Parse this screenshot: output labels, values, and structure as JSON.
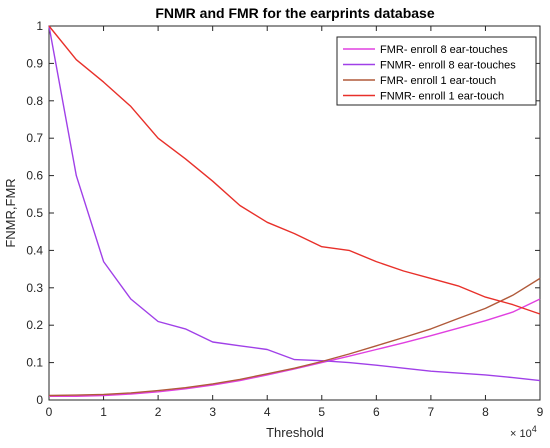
{
  "chart_data": {
    "type": "line",
    "title": "FNMR and FMR for the earprints database",
    "xlabel": "Threshold",
    "ylabel": "FNMR,FMR",
    "xlim": [
      0,
      90000
    ],
    "ylim": [
      0,
      1
    ],
    "x_exponent_label": "× 10^4",
    "x_ticks": [
      0,
      10000,
      20000,
      30000,
      40000,
      50000,
      60000,
      70000,
      80000,
      90000
    ],
    "x_tick_labels": [
      "0",
      "1",
      "2",
      "3",
      "4",
      "5",
      "6",
      "7",
      "8",
      "9"
    ],
    "y_ticks": [
      0,
      0.1,
      0.2,
      0.3,
      0.4,
      0.5,
      0.6,
      0.7,
      0.8,
      0.9,
      1
    ],
    "y_tick_labels": [
      "0",
      "0.1",
      "0.2",
      "0.3",
      "0.4",
      "0.5",
      "0.6",
      "0.7",
      "0.8",
      "0.9",
      "1"
    ],
    "grid": false,
    "legend_position": "top-right",
    "series": [
      {
        "name": "FMR- enroll 8 ear-touches",
        "color": "#e040e0",
        "x": [
          0,
          5000,
          10000,
          15000,
          20000,
          25000,
          30000,
          35000,
          40000,
          45000,
          50000,
          55000,
          60000,
          65000,
          70000,
          75000,
          80000,
          85000,
          90000
        ],
        "values": [
          0.01,
          0.01,
          0.012,
          0.016,
          0.022,
          0.03,
          0.04,
          0.052,
          0.067,
          0.083,
          0.1,
          0.117,
          0.135,
          0.153,
          0.172,
          0.192,
          0.212,
          0.235,
          0.27
        ]
      },
      {
        "name": "FNMR- enroll 8 ear-touches",
        "color": "#a040e8",
        "x": [
          0,
          5000,
          10000,
          15000,
          20000,
          25000,
          30000,
          35000,
          40000,
          45000,
          50000,
          55000,
          60000,
          65000,
          70000,
          75000,
          80000,
          85000,
          90000
        ],
        "values": [
          1.0,
          0.6,
          0.37,
          0.27,
          0.21,
          0.19,
          0.155,
          0.145,
          0.135,
          0.108,
          0.105,
          0.1,
          0.093,
          0.085,
          0.077,
          0.072,
          0.067,
          0.06,
          0.052
        ]
      },
      {
        "name": "FMR- enroll 1 ear-touch",
        "color": "#b05a3a",
        "x": [
          0,
          5000,
          10000,
          15000,
          20000,
          25000,
          30000,
          35000,
          40000,
          45000,
          50000,
          55000,
          60000,
          65000,
          70000,
          75000,
          80000,
          85000,
          90000
        ],
        "values": [
          0.012,
          0.013,
          0.015,
          0.019,
          0.025,
          0.033,
          0.043,
          0.055,
          0.07,
          0.085,
          0.103,
          0.123,
          0.145,
          0.167,
          0.19,
          0.218,
          0.245,
          0.28,
          0.325
        ]
      },
      {
        "name": "FNMR- enroll 1 ear-touch",
        "color": "#e8302a",
        "x": [
          0,
          5000,
          10000,
          15000,
          20000,
          25000,
          30000,
          35000,
          40000,
          45000,
          50000,
          55000,
          60000,
          65000,
          70000,
          75000,
          80000,
          85000,
          90000
        ],
        "values": [
          1.0,
          0.91,
          0.85,
          0.785,
          0.7,
          0.645,
          0.585,
          0.52,
          0.475,
          0.445,
          0.41,
          0.4,
          0.37,
          0.345,
          0.325,
          0.305,
          0.275,
          0.255,
          0.23
        ]
      }
    ]
  }
}
